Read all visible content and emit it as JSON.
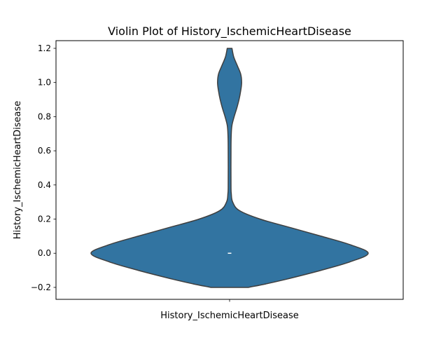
{
  "chart_data": {
    "type": "violin",
    "title": "Violin Plot of History_IschemicHeartDisease",
    "xlabel": "History_IschemicHeartDisease",
    "ylabel": "History_IschemicHeartDisease",
    "ylim": [
      -0.27,
      1.245
    ],
    "yticks": [
      -0.2,
      0.0,
      0.2,
      0.4,
      0.6,
      0.8,
      1.0,
      1.2
    ],
    "ytick_labels": [
      "−0.2",
      "0.0",
      "0.2",
      "0.4",
      "0.6",
      "0.8",
      "1.0",
      "1.2"
    ],
    "grid": false,
    "fill_color": "#3274a1",
    "edge_color": "#3f3f3f",
    "series": [
      {
        "category": "History_IschemicHeartDisease",
        "median": 0,
        "quartiles": [
          0,
          0
        ],
        "density": [
          [
            -0.2,
            0.135
          ],
          [
            -0.18,
            0.26
          ],
          [
            -0.15,
            0.42
          ],
          [
            -0.1,
            0.66
          ],
          [
            -0.05,
            0.87
          ],
          [
            0.0,
            1.0
          ],
          [
            0.05,
            0.87
          ],
          [
            0.1,
            0.66
          ],
          [
            0.15,
            0.44
          ],
          [
            0.2,
            0.22
          ],
          [
            0.25,
            0.07
          ],
          [
            0.3,
            0.022
          ],
          [
            0.35,
            0.012
          ],
          [
            0.4,
            0.01
          ],
          [
            0.6,
            0.01
          ],
          [
            0.7,
            0.012
          ],
          [
            0.75,
            0.017
          ],
          [
            0.8,
            0.033
          ],
          [
            0.85,
            0.052
          ],
          [
            0.9,
            0.068
          ],
          [
            0.95,
            0.08
          ],
          [
            1.0,
            0.087
          ],
          [
            1.05,
            0.08
          ],
          [
            1.1,
            0.055
          ],
          [
            1.15,
            0.03
          ],
          [
            1.2,
            0.017
          ]
        ]
      }
    ]
  }
}
